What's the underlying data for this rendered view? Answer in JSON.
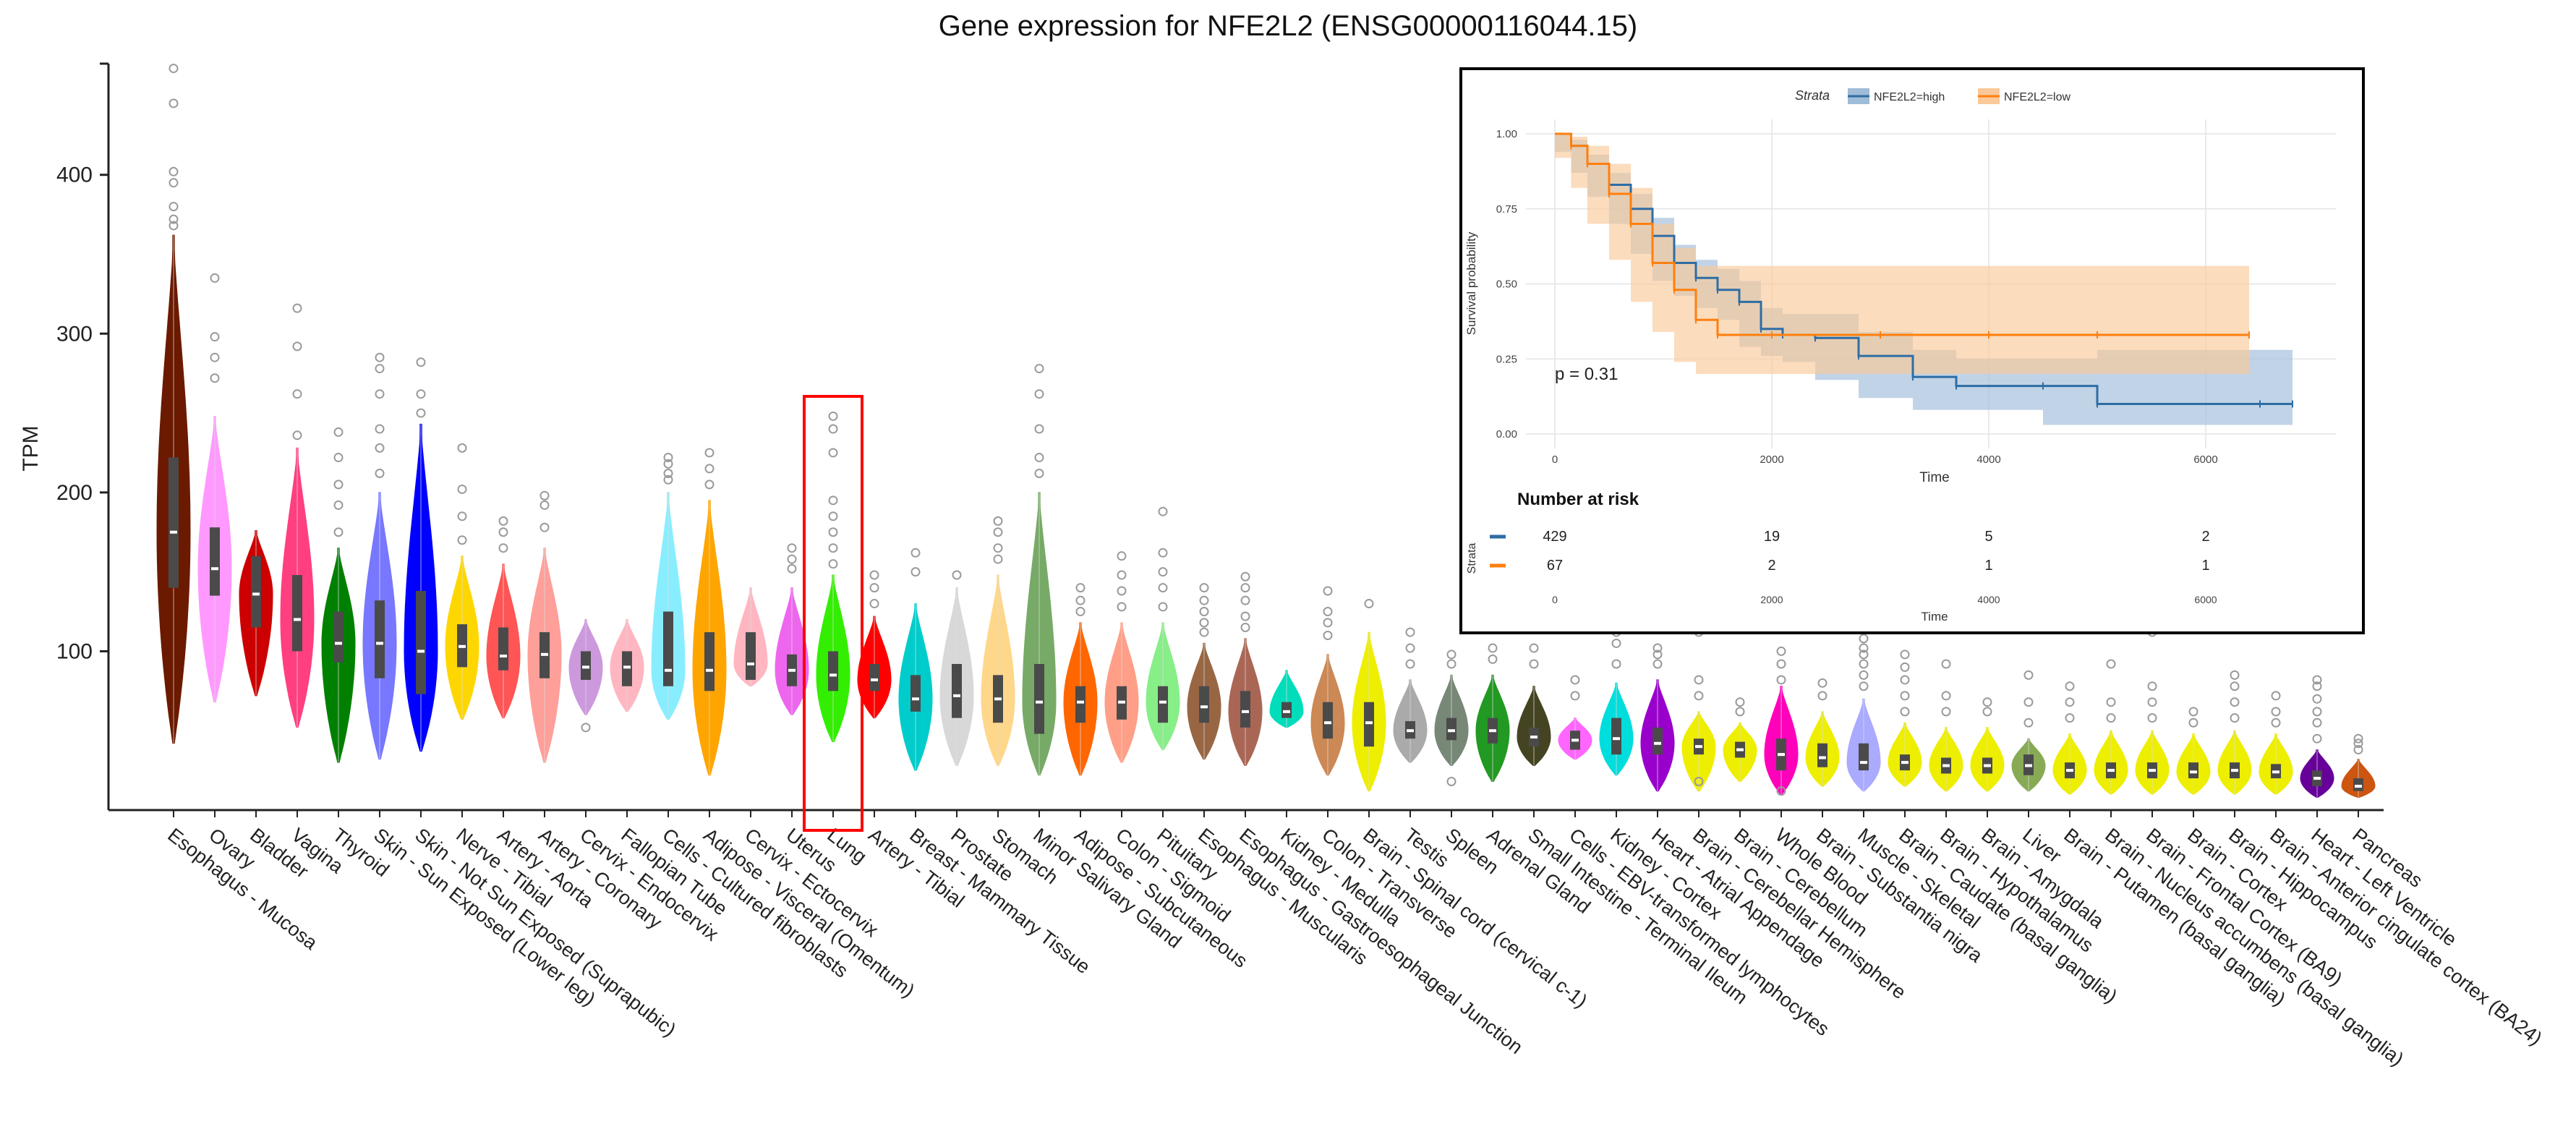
{
  "chart_data": [
    {
      "type": "violin",
      "title": "Gene expression for NFE2L2 (ENSG00000116044.15)",
      "ylabel": "TPM",
      "ylim": [
        0,
        470
      ],
      "yticks": [
        100,
        200,
        300,
        400
      ],
      "highlighted_category": "Lung",
      "categories": [
        {
          "name": "Esophagus - Mucosa",
          "color": "#6b1a00",
          "median": 175,
          "q1": 140,
          "q3": 222,
          "min": 42,
          "max": 362,
          "outliers": [
            368,
            372,
            380,
            395,
            402,
            445,
            467
          ]
        },
        {
          "name": "Ovary",
          "color": "#ff99ff",
          "median": 152,
          "q1": 135,
          "q3": 178,
          "min": 68,
          "max": 248,
          "outliers": [
            272,
            285,
            298,
            335
          ]
        },
        {
          "name": "Bladder",
          "color": "#cc0000",
          "median": 136,
          "q1": 115,
          "q3": 160,
          "min": 72,
          "max": 176,
          "outliers": []
        },
        {
          "name": "Vagina",
          "color": "#ff3f80",
          "median": 120,
          "q1": 100,
          "q3": 148,
          "min": 52,
          "max": 228,
          "outliers": [
            236,
            262,
            292,
            316
          ]
        },
        {
          "name": "Thyroid",
          "color": "#008000",
          "median": 105,
          "q1": 93,
          "q3": 125,
          "min": 30,
          "max": 165,
          "outliers": [
            175,
            192,
            205,
            222,
            238
          ]
        },
        {
          "name": "Skin - Sun Exposed (Lower leg)",
          "color": "#7777ff",
          "median": 105,
          "q1": 83,
          "q3": 132,
          "min": 32,
          "max": 200,
          "outliers": [
            212,
            228,
            240,
            262,
            278,
            285
          ]
        },
        {
          "name": "Skin - Not Sun Exposed (Suprapubic)",
          "color": "#0000ff",
          "median": 100,
          "q1": 73,
          "q3": 138,
          "min": 37,
          "max": 243,
          "outliers": [
            250,
            262,
            282
          ]
        },
        {
          "name": "Nerve - Tibial",
          "color": "#ffd700",
          "median": 103,
          "q1": 90,
          "q3": 117,
          "min": 57,
          "max": 160,
          "outliers": [
            170,
            185,
            202,
            228
          ]
        },
        {
          "name": "Artery - Aorta",
          "color": "#ff5555",
          "median": 97,
          "q1": 88,
          "q3": 115,
          "min": 58,
          "max": 155,
          "outliers": [
            165,
            175,
            182
          ]
        },
        {
          "name": "Artery - Coronary",
          "color": "#ff9f99",
          "median": 98,
          "q1": 83,
          "q3": 112,
          "min": 30,
          "max": 165,
          "outliers": [
            178,
            192,
            198
          ]
        },
        {
          "name": "Cervix - Endocervix",
          "color": "#cc99dd",
          "median": 90,
          "q1": 82,
          "q3": 100,
          "min": 60,
          "max": 120,
          "outliers": [
            52
          ]
        },
        {
          "name": "Fallopian Tube",
          "color": "#ffb6c1",
          "median": 90,
          "q1": 78,
          "q3": 100,
          "min": 62,
          "max": 120,
          "outliers": []
        },
        {
          "name": "Cells - Cultured fibroblasts",
          "color": "#88eeff",
          "median": 88,
          "q1": 78,
          "q3": 125,
          "min": 57,
          "max": 200,
          "outliers": [
            208,
            212,
            218,
            222
          ]
        },
        {
          "name": "Adipose - Visceral (Omentum)",
          "color": "#ffa500",
          "median": 88,
          "q1": 75,
          "q3": 112,
          "min": 22,
          "max": 195,
          "outliers": [
            205,
            215,
            225
          ]
        },
        {
          "name": "Cervix - Ectocervix",
          "color": "#ffb6c1",
          "median": 92,
          "q1": 82,
          "q3": 112,
          "min": 78,
          "max": 140,
          "outliers": []
        },
        {
          "name": "Uterus",
          "color": "#ee66ee",
          "median": 88,
          "q1": 78,
          "q3": 98,
          "min": 60,
          "max": 140,
          "outliers": [
            152,
            158,
            165
          ]
        },
        {
          "name": "Lung",
          "color": "#33ee00",
          "median": 85,
          "q1": 75,
          "q3": 100,
          "min": 43,
          "max": 148,
          "outliers": [
            155,
            165,
            175,
            185,
            195,
            225,
            240,
            248
          ]
        },
        {
          "name": "Artery - Tibial",
          "color": "#ff0000",
          "median": 82,
          "q1": 75,
          "q3": 92,
          "min": 58,
          "max": 122,
          "outliers": [
            130,
            140,
            148
          ]
        },
        {
          "name": "Breast - Mammary Tissue",
          "color": "#00cccc",
          "median": 70,
          "q1": 62,
          "q3": 85,
          "min": 25,
          "max": 130,
          "outliers": [
            150,
            162
          ]
        },
        {
          "name": "Prostate",
          "color": "#d8d8d8",
          "median": 72,
          "q1": 58,
          "q3": 92,
          "min": 28,
          "max": 140,
          "outliers": [
            148
          ]
        },
        {
          "name": "Stomach",
          "color": "#ffd78a",
          "median": 70,
          "q1": 55,
          "q3": 85,
          "min": 28,
          "max": 148,
          "outliers": [
            158,
            165,
            175,
            182
          ]
        },
        {
          "name": "Minor Salivary Gland",
          "color": "#77aa66",
          "median": 68,
          "q1": 48,
          "q3": 92,
          "min": 22,
          "max": 200,
          "outliers": [
            212,
            222,
            240,
            262,
            278
          ]
        },
        {
          "name": "Adipose - Subcutaneous",
          "color": "#ff6600",
          "median": 68,
          "q1": 55,
          "q3": 78,
          "min": 22,
          "max": 118,
          "outliers": [
            125,
            132,
            140
          ]
        },
        {
          "name": "Colon - Sigmoid",
          "color": "#ff9f88",
          "median": 68,
          "q1": 57,
          "q3": 78,
          "min": 30,
          "max": 118,
          "outliers": [
            128,
            138,
            148,
            160
          ]
        },
        {
          "name": "Pituitary",
          "color": "#88ee88",
          "median": 68,
          "q1": 55,
          "q3": 78,
          "min": 38,
          "max": 118,
          "outliers": [
            128,
            140,
            150,
            162,
            188
          ]
        },
        {
          "name": "Esophagus - Muscularis",
          "color": "#996644",
          "median": 65,
          "q1": 55,
          "q3": 78,
          "min": 32,
          "max": 105,
          "outliers": [
            112,
            118,
            125,
            132,
            140
          ]
        },
        {
          "name": "Esophagus - Gastroesophageal Junction",
          "color": "#aa6655",
          "median": 62,
          "q1": 52,
          "q3": 75,
          "min": 28,
          "max": 108,
          "outliers": [
            115,
            122,
            132,
            140,
            147
          ]
        },
        {
          "name": "Kidney - Medulla",
          "color": "#00ddbb",
          "median": 62,
          "q1": 58,
          "q3": 68,
          "min": 52,
          "max": 88,
          "outliers": []
        },
        {
          "name": "Colon - Transverse",
          "color": "#cc8855",
          "median": 55,
          "q1": 45,
          "q3": 68,
          "min": 22,
          "max": 98,
          "outliers": [
            110,
            118,
            125,
            138
          ]
        },
        {
          "name": "Brain - Spinal cord (cervical c-1)",
          "color": "#eeee00",
          "median": 55,
          "q1": 40,
          "q3": 68,
          "min": 12,
          "max": 112,
          "outliers": [
            130
          ]
        },
        {
          "name": "Testis",
          "color": "#aaaaaa",
          "median": 50,
          "q1": 45,
          "q3": 56,
          "min": 30,
          "max": 82,
          "outliers": [
            92,
            102,
            112
          ]
        },
        {
          "name": "Spleen",
          "color": "#778877",
          "median": 50,
          "q1": 44,
          "q3": 58,
          "min": 28,
          "max": 85,
          "outliers": [
            92,
            98,
            18
          ]
        },
        {
          "name": "Adrenal Gland",
          "color": "#229922",
          "median": 50,
          "q1": 42,
          "q3": 58,
          "min": 18,
          "max": 85,
          "outliers": [
            95,
            102
          ]
        },
        {
          "name": "Small Intestine - Terminal Ileum",
          "color": "#444422",
          "median": 46,
          "q1": 40,
          "q3": 52,
          "min": 28,
          "max": 78,
          "outliers": [
            92,
            102
          ]
        },
        {
          "name": "Cells - EBV-transformed lymphocytes",
          "color": "#ff66ff",
          "median": 44,
          "q1": 38,
          "q3": 50,
          "min": 32,
          "max": 58,
          "outliers": [
            72,
            82
          ]
        },
        {
          "name": "Kidney - Cortex",
          "color": "#00dddd",
          "median": 45,
          "q1": 35,
          "q3": 58,
          "min": 22,
          "max": 80,
          "outliers": [
            92,
            105,
            112
          ]
        },
        {
          "name": "Heart - Atrial Appendage",
          "color": "#9900cc",
          "median": 42,
          "q1": 35,
          "q3": 52,
          "min": 12,
          "max": 82,
          "outliers": [
            92,
            98,
            102
          ]
        },
        {
          "name": "Brain - Cerebellar Hemisphere",
          "color": "#eeee00",
          "median": 40,
          "q1": 35,
          "q3": 45,
          "min": 12,
          "max": 62,
          "outliers": [
            72,
            82,
            112,
            18
          ]
        },
        {
          "name": "Brain - Cerebellum",
          "color": "#eeee00",
          "median": 38,
          "q1": 33,
          "q3": 43,
          "min": 18,
          "max": 55,
          "outliers": [
            62,
            68
          ]
        },
        {
          "name": "Whole Blood",
          "color": "#ff00bb",
          "median": 35,
          "q1": 25,
          "q3": 45,
          "min": 10,
          "max": 78,
          "outliers": [
            82,
            92,
            100,
            12
          ]
        },
        {
          "name": "Brain - Substantia nigra",
          "color": "#eeee00",
          "median": 33,
          "q1": 27,
          "q3": 42,
          "min": 15,
          "max": 62,
          "outliers": [
            72,
            80
          ]
        },
        {
          "name": "Muscle - Skeletal",
          "color": "#aaaaff",
          "median": 30,
          "q1": 25,
          "q3": 42,
          "min": 12,
          "max": 70,
          "outliers": [
            78,
            85,
            92,
            98,
            102,
            108,
            114
          ]
        },
        {
          "name": "Brain - Caudate (basal ganglia)",
          "color": "#eeee00",
          "median": 30,
          "q1": 25,
          "q3": 35,
          "min": 15,
          "max": 55,
          "outliers": [
            62,
            72,
            82,
            90,
            98
          ]
        },
        {
          "name": "Brain - Hypothalamus",
          "color": "#eeee00",
          "median": 28,
          "q1": 23,
          "q3": 33,
          "min": 12,
          "max": 52,
          "outliers": [
            62,
            72,
            92
          ]
        },
        {
          "name": "Brain - Amygdala",
          "color": "#eeee00",
          "median": 28,
          "q1": 23,
          "q3": 33,
          "min": 12,
          "max": 52,
          "outliers": [
            62,
            68
          ]
        },
        {
          "name": "Liver",
          "color": "#88aa55",
          "median": 28,
          "q1": 22,
          "q3": 35,
          "min": 12,
          "max": 45,
          "outliers": [
            55,
            68,
            85
          ]
        },
        {
          "name": "Brain - Putamen (basal ganglia)",
          "color": "#eeee00",
          "median": 25,
          "q1": 20,
          "q3": 30,
          "min": 10,
          "max": 48,
          "outliers": [
            58,
            68,
            78
          ]
        },
        {
          "name": "Brain - Nucleus accumbens (basal ganglia)",
          "color": "#eeee00",
          "median": 25,
          "q1": 20,
          "q3": 30,
          "min": 10,
          "max": 50,
          "outliers": [
            58,
            68,
            92
          ]
        },
        {
          "name": "Brain - Frontal Cortex (BA9)",
          "color": "#eeee00",
          "median": 25,
          "q1": 20,
          "q3": 30,
          "min": 10,
          "max": 50,
          "outliers": [
            58,
            68,
            78,
            112
          ]
        },
        {
          "name": "Brain - Cortex",
          "color": "#eeee00",
          "median": 24,
          "q1": 20,
          "q3": 30,
          "min": 10,
          "max": 48,
          "outliers": [
            55,
            62
          ]
        },
        {
          "name": "Brain - Hippocampus",
          "color": "#eeee00",
          "median": 25,
          "q1": 20,
          "q3": 30,
          "min": 10,
          "max": 50,
          "outliers": [
            58,
            68,
            78,
            85
          ]
        },
        {
          "name": "Brain - Anterior cingulate cortex (BA24)",
          "color": "#eeee00",
          "median": 24,
          "q1": 20,
          "q3": 29,
          "min": 10,
          "max": 48,
          "outliers": [
            55,
            62,
            72
          ]
        },
        {
          "name": "Heart - Left Ventricle",
          "color": "#660099",
          "median": 20,
          "q1": 15,
          "q3": 25,
          "min": 8,
          "max": 38,
          "outliers": [
            45,
            55,
            62,
            70,
            78,
            82
          ]
        },
        {
          "name": "Pancreas",
          "color": "#cc5511",
          "median": 15,
          "q1": 12,
          "q3": 20,
          "min": 8,
          "max": 32,
          "outliers": [
            38,
            42,
            45
          ]
        }
      ]
    },
    {
      "type": "line",
      "subtype": "kaplan-meier",
      "legend_title": "Strata",
      "xlabel": "Time",
      "ylabel": "Survival probability",
      "xlim": [
        0,
        7000
      ],
      "ylim": [
        0,
        1
      ],
      "xticks": [
        0,
        2000,
        4000,
        6000
      ],
      "yticks": [
        "0.00",
        "0.25",
        "0.50",
        "0.75",
        "1.00"
      ],
      "annotation": "p = 0.31",
      "series": [
        {
          "name": "NFE2L2=high",
          "color": "#2e6da4",
          "band_color": "#9fbcd8",
          "x": [
            0,
            150,
            300,
            500,
            700,
            900,
            1100,
            1300,
            1500,
            1700,
            1900,
            2100,
            2400,
            2800,
            3300,
            3700,
            4500,
            5000,
            6500,
            6800
          ],
          "y": [
            1.0,
            0.96,
            0.9,
            0.83,
            0.75,
            0.66,
            0.57,
            0.52,
            0.48,
            0.44,
            0.35,
            0.33,
            0.32,
            0.26,
            0.19,
            0.16,
            0.16,
            0.1,
            0.1,
            0.1
          ],
          "lower": [
            1.0,
            0.94,
            0.87,
            0.79,
            0.7,
            0.6,
            0.51,
            0.46,
            0.42,
            0.38,
            0.29,
            0.26,
            0.24,
            0.18,
            0.12,
            0.08,
            0.08,
            0.03,
            0.03,
            0.03
          ],
          "upper": [
            1.0,
            0.98,
            0.93,
            0.87,
            0.8,
            0.72,
            0.63,
            0.58,
            0.55,
            0.51,
            0.42,
            0.4,
            0.4,
            0.34,
            0.28,
            0.25,
            0.25,
            0.28,
            0.28,
            0.28
          ]
        },
        {
          "name": "NFE2L2=low",
          "color": "#ff7f0e",
          "band_color": "#f9c99a",
          "x": [
            0,
            150,
            300,
            500,
            700,
            900,
            1100,
            1300,
            1500,
            2000,
            3000,
            4000,
            5000,
            6400
          ],
          "y": [
            1.0,
            0.96,
            0.9,
            0.8,
            0.7,
            0.57,
            0.48,
            0.38,
            0.33,
            0.33,
            0.33,
            0.33,
            0.33,
            0.33
          ],
          "lower": [
            1.0,
            0.92,
            0.82,
            0.7,
            0.58,
            0.44,
            0.34,
            0.24,
            0.2,
            0.2,
            0.2,
            0.2,
            0.2,
            0.2
          ],
          "upper": [
            1.0,
            0.99,
            0.96,
            0.9,
            0.82,
            0.7,
            0.62,
            0.56,
            0.56,
            0.56,
            0.56,
            0.56,
            0.56,
            0.56
          ]
        }
      ],
      "risk_table": {
        "title": "Number at risk",
        "row_label": "Strata",
        "xlabel": "Time",
        "times": [
          "0",
          "2000",
          "4000",
          "6000"
        ],
        "rows": [
          {
            "color": "#2e6da4",
            "counts": [
              "429",
              "19",
              "5",
              "2"
            ]
          },
          {
            "color": "#ff7f0e",
            "counts": [
              "67",
              "2",
              "1",
              "1"
            ]
          }
        ]
      }
    }
  ]
}
